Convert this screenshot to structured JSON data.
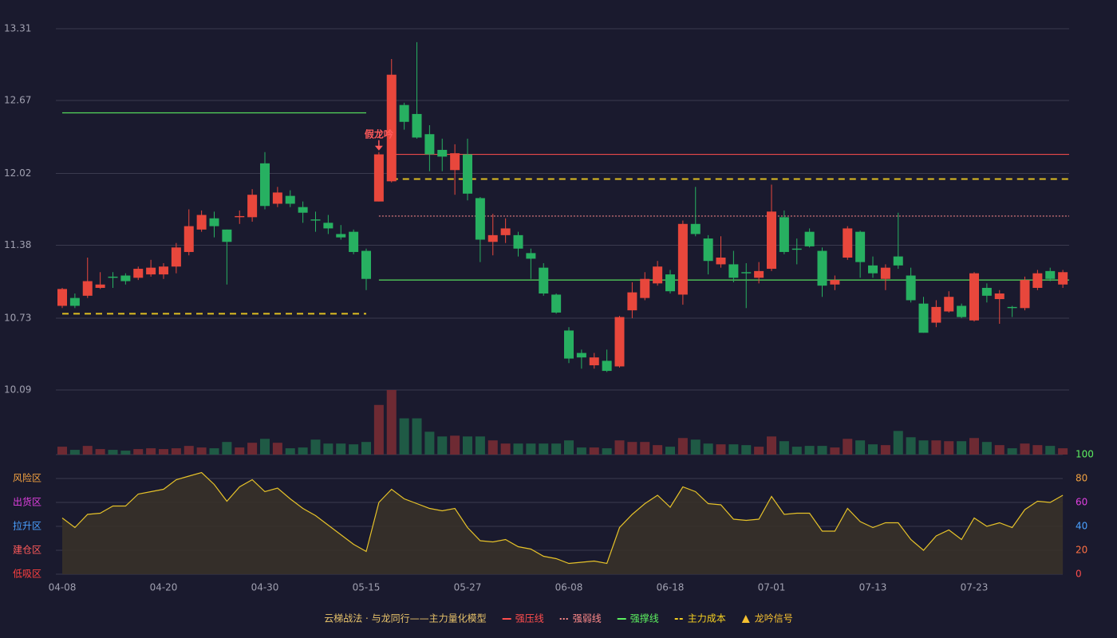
{
  "chart_data": {
    "type": "candlestick",
    "categories": [
      "04-08",
      null,
      null,
      null,
      null,
      null,
      null,
      null,
      "04-20",
      null,
      null,
      null,
      null,
      null,
      null,
      null,
      "04-30",
      null,
      null,
      null,
      null,
      null,
      null,
      null,
      "05-15",
      null,
      null,
      null,
      null,
      null,
      null,
      null,
      "05-27",
      null,
      null,
      null,
      null,
      null,
      null,
      null,
      "06-08",
      null,
      null,
      null,
      null,
      null,
      null,
      null,
      "06-18",
      null,
      null,
      null,
      null,
      null,
      null,
      null,
      "07-01",
      null,
      null,
      null,
      null,
      null,
      null,
      null,
      "07-13",
      null,
      null,
      null,
      null,
      null,
      null,
      null,
      "07-23",
      null,
      null,
      null,
      null,
      null,
      null,
      null
    ],
    "open": [
      10.84,
      10.91,
      10.93,
      11.0,
      11.1,
      11.11,
      11.09,
      11.12,
      11.12,
      11.19,
      11.32,
      11.52,
      11.62,
      11.52,
      11.63,
      11.63,
      12.11,
      11.75,
      11.82,
      11.72,
      11.61,
      11.58,
      11.48,
      11.5,
      11.33,
      11.77,
      11.95,
      12.63,
      12.55,
      12.37,
      12.23,
      12.05,
      12.19,
      11.8,
      11.41,
      11.47,
      11.47,
      11.31,
      11.18,
      10.94,
      10.62,
      10.42,
      10.31,
      10.35,
      10.3,
      10.8,
      10.91,
      11.04,
      11.12,
      10.94,
      11.57,
      11.44,
      11.21,
      11.21,
      11.14,
      11.09,
      11.17,
      11.63,
      11.35,
      11.5,
      11.33,
      11.03,
      11.27,
      11.5,
      11.2,
      11.08,
      11.28,
      11.11,
      10.86,
      10.69,
      10.79,
      10.84,
      10.71,
      11.0,
      10.9,
      10.83,
      10.82,
      11.0,
      11.15,
      11.03
    ],
    "high": [
      11.0,
      10.95,
      11.27,
      11.14,
      11.14,
      11.13,
      11.19,
      11.25,
      11.22,
      11.4,
      11.7,
      11.69,
      11.68,
      11.52,
      11.69,
      11.88,
      12.21,
      11.9,
      11.87,
      11.77,
      11.68,
      11.65,
      11.56,
      11.52,
      11.35,
      12.21,
      13.04,
      12.65,
      13.19,
      12.45,
      12.33,
      12.28,
      12.33,
      11.81,
      11.66,
      11.62,
      11.5,
      11.35,
      11.22,
      10.95,
      10.65,
      10.45,
      10.42,
      10.45,
      10.75,
      11.05,
      11.14,
      11.24,
      11.16,
      11.6,
      11.9,
      11.47,
      11.46,
      11.33,
      11.22,
      11.23,
      11.92,
      11.69,
      11.44,
      11.53,
      11.36,
      11.11,
      11.55,
      11.51,
      11.28,
      11.21,
      11.67,
      11.18,
      10.92,
      10.89,
      10.97,
      10.86,
      11.14,
      11.04,
      10.98,
      10.84,
      11.1,
      11.16,
      11.18,
      11.16
    ],
    "low": [
      10.82,
      10.82,
      10.91,
      10.99,
      11.0,
      11.03,
      11.07,
      11.1,
      11.08,
      11.13,
      11.29,
      11.5,
      11.45,
      11.03,
      11.57,
      11.59,
      11.7,
      11.72,
      11.72,
      11.58,
      11.5,
      11.48,
      11.43,
      11.3,
      10.98,
      11.77,
      11.94,
      12.41,
      12.33,
      12.04,
      12.04,
      11.83,
      11.78,
      11.23,
      11.29,
      11.4,
      11.28,
      11.08,
      10.93,
      10.77,
      10.33,
      10.28,
      10.28,
      10.25,
      10.29,
      10.73,
      10.89,
      11.02,
      10.95,
      10.85,
      11.46,
      11.12,
      11.18,
      11.05,
      10.82,
      11.04,
      11.15,
      11.3,
      11.21,
      11.36,
      10.92,
      10.98,
      11.25,
      11.09,
      11.09,
      10.98,
      11.17,
      10.87,
      10.6,
      10.65,
      10.78,
      10.73,
      10.7,
      10.87,
      10.68,
      10.74,
      10.8,
      10.98,
      11.06,
      11.0
    ],
    "close": [
      10.99,
      10.84,
      11.06,
      11.03,
      11.09,
      11.06,
      11.17,
      11.18,
      11.19,
      11.36,
      11.55,
      11.65,
      11.55,
      11.41,
      11.64,
      11.83,
      11.73,
      11.85,
      11.75,
      11.67,
      11.6,
      11.53,
      11.45,
      11.32,
      11.08,
      12.19,
      12.9,
      12.48,
      12.34,
      12.19,
      12.17,
      12.2,
      11.84,
      11.43,
      11.47,
      11.53,
      11.35,
      11.26,
      10.95,
      10.78,
      10.37,
      10.38,
      10.38,
      10.26,
      10.74,
      10.96,
      11.08,
      11.19,
      10.97,
      11.57,
      11.48,
      11.24,
      11.27,
      11.09,
      11.13,
      11.15,
      11.68,
      11.32,
      11.34,
      11.37,
      11.02,
      11.07,
      11.53,
      11.23,
      11.13,
      11.18,
      11.2,
      10.89,
      10.6,
      10.83,
      10.92,
      10.74,
      11.13,
      10.93,
      10.95,
      10.82,
      11.07,
      11.13,
      11.08,
      11.14
    ],
    "volume": [
      10,
      6,
      11,
      7,
      6,
      5,
      7,
      8,
      7,
      8,
      11,
      9,
      8,
      16,
      9,
      15,
      20,
      15,
      8,
      9,
      19,
      14,
      14,
      13,
      16,
      63,
      82,
      46,
      46,
      29,
      23,
      24,
      23,
      23,
      18,
      14,
      14,
      14,
      14,
      14,
      18,
      9,
      9,
      8,
      18,
      16,
      16,
      12,
      10,
      21,
      19,
      14,
      13,
      13,
      12,
      10,
      23,
      17,
      10,
      11,
      11,
      9,
      20,
      18,
      13,
      12,
      30,
      22,
      18,
      18,
      17,
      17,
      21,
      16,
      12,
      8,
      14,
      12,
      11,
      8
    ],
    "vlim": [
      0,
      82
    ],
    "up_color": "#e8473c",
    "down_color": "#27b061",
    "ylim": [
      10.09,
      13.31
    ],
    "yticks": [
      10.09,
      10.73,
      11.38,
      12.02,
      12.67,
      13.31
    ],
    "grid": true,
    "legend": [
      {
        "name": "云梯战法 · 与龙同行——主力量化模型",
        "color": "#e8c36a",
        "marker": "none"
      },
      {
        "name": "强压线",
        "color": "#ff4d4d",
        "marker": "line"
      },
      {
        "name": "强弱线",
        "color": "#ff8a8a",
        "marker": "dotted"
      },
      {
        "name": "强撑线",
        "color": "#5cf060",
        "marker": "line"
      },
      {
        "name": "主力成本",
        "color": "#f5d020",
        "marker": "dashed"
      },
      {
        "name": "龙吟信号",
        "color": "#f5c030",
        "marker": "triangle"
      }
    ],
    "levels": [
      {
        "legend": 3,
        "value": 12.56,
        "from": 0,
        "to": 24
      },
      {
        "legend": 4,
        "value": 10.77,
        "from": 0,
        "to": 24
      },
      {
        "legend": 1,
        "value": 12.19,
        "from": 26,
        "to": 79
      },
      {
        "legend": 4,
        "value": 11.97,
        "from": 26,
        "to": 79
      },
      {
        "legend": 2,
        "value": 11.64,
        "from": 25,
        "to": 79
      },
      {
        "legend": 3,
        "value": 11.07,
        "from": 25,
        "to": 79
      }
    ],
    "signals": [
      {
        "index": 25,
        "label": "假龙吟",
        "color": "#ff5a5a"
      }
    ],
    "indicator": {
      "values": [
        47,
        39,
        50,
        51,
        57,
        57,
        67,
        69,
        71,
        79,
        82,
        85,
        75,
        61,
        73,
        79,
        69,
        72,
        63,
        55,
        49,
        41,
        33,
        25,
        19,
        60,
        71,
        63,
        59,
        55,
        53,
        55,
        39,
        28,
        27,
        29,
        23,
        21,
        15,
        13,
        9,
        10,
        11,
        9,
        39,
        50,
        59,
        66,
        56,
        73,
        69,
        59,
        58,
        46,
        45,
        46,
        65,
        50,
        51,
        51,
        36,
        36,
        55,
        44,
        39,
        43,
        43,
        29,
        20,
        32,
        37,
        29,
        47,
        40,
        43,
        39,
        54,
        61,
        60,
        66
      ],
      "color": "#e6c229",
      "ylim": [
        0,
        100
      ],
      "yticks": [
        0,
        20,
        40,
        60,
        80,
        100
      ],
      "ytick_colors": [
        "#ff4d4d",
        "#ff7043",
        "#4aa0ff",
        "#e040e0",
        "#f0a040",
        "#5cf060"
      ],
      "zones": [
        {
          "label": "风险区",
          "value": 80,
          "color": "#f0a040"
        },
        {
          "label": "出货区",
          "value": 60,
          "color": "#e040e0"
        },
        {
          "label": "拉升区",
          "value": 40,
          "color": "#4aa0ff"
        },
        {
          "label": "建仓区",
          "value": 20,
          "color": "#ff5a5a"
        },
        {
          "label": "低吸区",
          "value": 0,
          "color": "#ff4040"
        }
      ]
    }
  }
}
